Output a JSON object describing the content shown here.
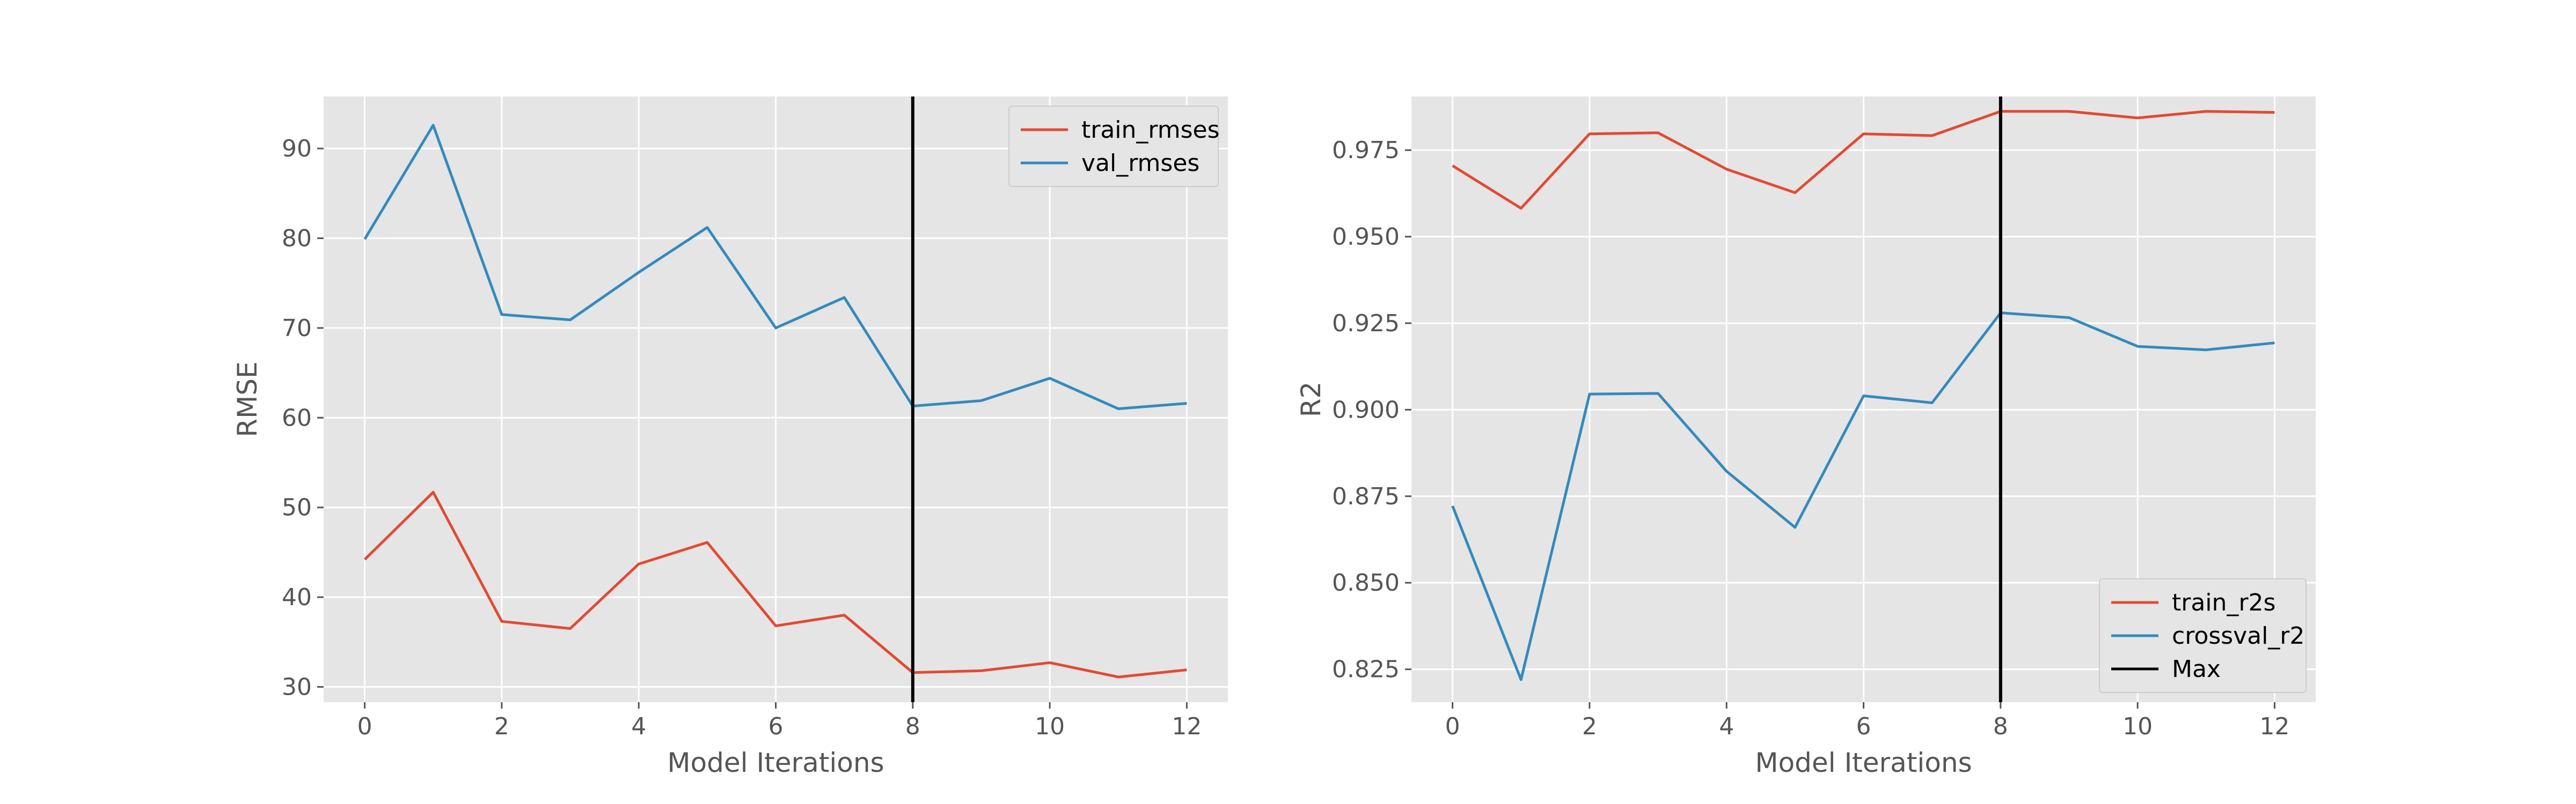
{
  "chart_data": [
    {
      "type": "line",
      "xlabel": "Model Iterations",
      "ylabel": "RMSE",
      "xlim": [
        -0.6,
        12.6
      ],
      "ylim": [
        28.3,
        95.8
      ],
      "xticks": [
        0,
        2,
        4,
        6,
        8,
        10,
        12
      ],
      "yticks": [
        30,
        40,
        50,
        60,
        70,
        80,
        90
      ],
      "grid": true,
      "legend_position": "top-right",
      "x": [
        0,
        1,
        2,
        3,
        4,
        5,
        6,
        7,
        8,
        9,
        10,
        11,
        12
      ],
      "series": [
        {
          "name": "train_rmses",
          "color": "#E24A33",
          "values": [
            44.2,
            51.7,
            37.3,
            36.5,
            43.7,
            46.1,
            36.8,
            38.0,
            31.6,
            31.8,
            32.7,
            31.1,
            31.9
          ]
        },
        {
          "name": "val_rmses",
          "color": "#348ABD",
          "values": [
            79.9,
            92.6,
            71.5,
            70.9,
            76.2,
            81.2,
            70.0,
            73.4,
            61.3,
            61.9,
            64.4,
            61.0,
            61.6
          ]
        }
      ],
      "vline": {
        "x": 8,
        "color": "#000000"
      }
    },
    {
      "type": "line",
      "xlabel": "Model Iterations",
      "ylabel": "R2",
      "xlim": [
        -0.6,
        12.6
      ],
      "ylim": [
        0.8155,
        0.9905
      ],
      "xticks": [
        0,
        2,
        4,
        6,
        8,
        10,
        12
      ],
      "yticks": [
        0.825,
        0.85,
        0.875,
        0.9,
        0.925,
        0.95,
        0.975
      ],
      "ytick_labels": [
        "0.825",
        "0.850",
        "0.875",
        "0.900",
        "0.925",
        "0.950",
        "0.975"
      ],
      "grid": true,
      "legend_position": "bottom-right",
      "x": [
        0,
        1,
        2,
        3,
        4,
        5,
        6,
        7,
        8,
        9,
        10,
        11,
        12
      ],
      "series": [
        {
          "name": "train_r2s",
          "color": "#E24A33",
          "values": [
            0.9705,
            0.9582,
            0.9797,
            0.98,
            0.9695,
            0.9627,
            0.9797,
            0.9792,
            0.9862,
            0.9862,
            0.9843,
            0.9862,
            0.9859
          ]
        },
        {
          "name": "crossval_r2",
          "color": "#348ABD",
          "values": [
            0.8722,
            0.822,
            0.9045,
            0.9047,
            0.8822,
            0.866,
            0.904,
            0.902,
            0.928,
            0.9266,
            0.9183,
            0.9173,
            0.9193
          ]
        }
      ],
      "vline": {
        "x": 8,
        "color": "#000000",
        "name": "Max"
      }
    }
  ]
}
